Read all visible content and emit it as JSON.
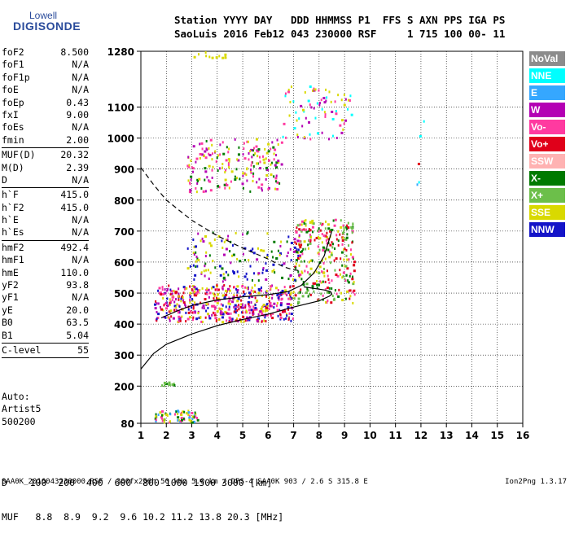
{
  "logo": {
    "top_text": "Lowell",
    "brand_text": "DIGISONDE"
  },
  "header": {
    "line1": "Station YYYY DAY   DDD HHMMSS P1  FFS S AXN PPS IGA PS",
    "line2": "SaoLuis 2016 Feb12 043 230000 RSF     1 715 100 00- 11"
  },
  "params": [
    {
      "name": "foF2",
      "value": "8.500"
    },
    {
      "name": "foF1",
      "value": "N/A"
    },
    {
      "name": "foF1p",
      "value": "N/A"
    },
    {
      "name": "foE",
      "value": "N/A"
    },
    {
      "name": "foEp",
      "value": "0.43"
    },
    {
      "name": "fxI",
      "value": "9.00"
    },
    {
      "name": "foEs",
      "value": "N/A"
    },
    {
      "name": "fmin",
      "value": "2.00"
    },
    {
      "sep": true
    },
    {
      "name": "MUF(D)",
      "value": "20.32"
    },
    {
      "name": "M(D)",
      "value": "2.39"
    },
    {
      "name": "D",
      "value": "N/A"
    },
    {
      "sep": true
    },
    {
      "name": "h`F",
      "value": "415.0"
    },
    {
      "name": "h`F2",
      "value": "415.0"
    },
    {
      "name": "h`E",
      "value": "N/A"
    },
    {
      "name": "h`Es",
      "value": "N/A"
    },
    {
      "sep": true
    },
    {
      "name": "hmF2",
      "value": "492.4"
    },
    {
      "name": "hmF1",
      "value": "N/A"
    },
    {
      "name": "hmE",
      "value": "110.0"
    },
    {
      "name": "yF2",
      "value": "93.8"
    },
    {
      "name": "yF1",
      "value": "N/A"
    },
    {
      "name": "yE",
      "value": "20.0"
    },
    {
      "name": "B0",
      "value": "63.5"
    },
    {
      "name": "B1",
      "value": "5.04"
    },
    {
      "sep": true
    },
    {
      "name": "C-level",
      "value": "55"
    },
    {
      "sep": true
    }
  ],
  "auto": {
    "line1": "Auto:",
    "line2": "Artist5",
    "line3": "500200"
  },
  "legend": [
    {
      "label": "NoVal",
      "color": "#8c8c8c"
    },
    {
      "label": "NNE",
      "color": "#00ffff"
    },
    {
      "label": "E",
      "color": "#35a7ff"
    },
    {
      "label": "W",
      "color": "#b400b4"
    },
    {
      "label": "Vo-",
      "color": "#ff3aa0"
    },
    {
      "label": "Vo+",
      "color": "#e0001a"
    },
    {
      "label": "SSW",
      "color": "#ffb2b2"
    },
    {
      "label": "X-",
      "color": "#007a00"
    },
    {
      "label": "X+",
      "color": "#6cbf4a"
    },
    {
      "label": "SSE",
      "color": "#d9d900"
    },
    {
      "label": "NNW",
      "color": "#1414c8"
    }
  ],
  "footer": {
    "line1": "D    100  200  400  600  800 1000 1500 3000 [km]",
    "line2": "MUF   8.8  8.9  9.2  9.6 10.2 11.2 13.8 20.3 [MHz]"
  },
  "bottom": {
    "info": "SAA0K_2016043230000.RSF / 300fx256h 50 kHz 5.0 km / DPS-4 SAA0K 903 / 2.6 S 315.8 E",
    "version": "Ion2Png 1.3.17"
  },
  "chart_data": {
    "type": "scatter",
    "xlim": [
      1,
      16
    ],
    "ylim": [
      80,
      1280
    ],
    "xticks": [
      "1",
      "2",
      "3",
      "4",
      "5",
      "6",
      "7",
      "8",
      "9",
      "10",
      "11",
      "12",
      "13",
      "14",
      "15",
      "16"
    ],
    "yticks": [
      {
        "value": 80,
        "label": "80"
      },
      {
        "value": 200,
        "label": "200"
      },
      {
        "value": 300,
        "label": "300"
      },
      {
        "value": 400,
        "label": "400"
      },
      {
        "value": 500,
        "label": "500"
      },
      {
        "value": 600,
        "label": "600"
      },
      {
        "value": 700,
        "label": "700"
      },
      {
        "value": 800,
        "label": "800"
      },
      {
        "value": 900,
        "label": "900"
      },
      {
        "value": 1000,
        "label": "1000"
      },
      {
        "value": 1100,
        "label": "1100"
      },
      {
        "value": 1280,
        "label": "1280"
      }
    ],
    "grid": true,
    "profile_curve": {
      "style": "solid",
      "points": [
        [
          1.0,
          255
        ],
        [
          1.5,
          305
        ],
        [
          2.0,
          335
        ],
        [
          3.0,
          368
        ],
        [
          4.0,
          395
        ],
        [
          5.0,
          415
        ],
        [
          6.0,
          432
        ],
        [
          7.0,
          455
        ],
        [
          8.0,
          475
        ],
        [
          8.4,
          490
        ],
        [
          8.5,
          497
        ],
        [
          8.45,
          505
        ],
        [
          8.2,
          510
        ],
        [
          7.8,
          515
        ],
        [
          7.4,
          520
        ]
      ]
    },
    "trace_curve": {
      "style": "solid",
      "points": [
        [
          1.8,
          420
        ],
        [
          2.5,
          445
        ],
        [
          3.0,
          460
        ],
        [
          4.0,
          478
        ],
        [
          5.0,
          488
        ],
        [
          6.0,
          495
        ],
        [
          6.8,
          505
        ],
        [
          7.3,
          525
        ],
        [
          7.8,
          565
        ],
        [
          8.2,
          620
        ],
        [
          8.5,
          700
        ]
      ]
    },
    "dashed_curve": {
      "style": "dashed",
      "points": [
        [
          1.0,
          905
        ],
        [
          1.5,
          850
        ],
        [
          2.0,
          800
        ],
        [
          3.0,
          735
        ],
        [
          4.0,
          685
        ],
        [
          5.0,
          645
        ],
        [
          6.0,
          610
        ],
        [
          6.6,
          585
        ],
        [
          7.0,
          575
        ],
        [
          7.3,
          572
        ]
      ]
    },
    "clusters": [
      {
        "x": [
          1.5,
          7.0
        ],
        "y": [
          410,
          530
        ],
        "colors": [
          "#ff3aa0",
          "#b400b4",
          "#1414c8",
          "#d9d900",
          "#e0001a"
        ],
        "count": 520
      },
      {
        "x": [
          7.0,
          9.4
        ],
        "y": [
          470,
          740
        ],
        "colors": [
          "#ff3aa0",
          "#007a00",
          "#d9d900",
          "#6cbf4a",
          "#e0001a"
        ],
        "count": 300
      },
      {
        "x": [
          2.8,
          7.3
        ],
        "y": [
          540,
          700
        ],
        "colors": [
          "#d9d900",
          "#b400b4",
          "#1414c8",
          "#007a00"
        ],
        "count": 150
      },
      {
        "x": [
          2.8,
          6.5
        ],
        "y": [
          830,
          1000
        ],
        "colors": [
          "#d9d900",
          "#b400b4",
          "#007a00",
          "#ff3aa0"
        ],
        "count": 200
      },
      {
        "x": [
          6.5,
          9.3
        ],
        "y": [
          1000,
          1170
        ],
        "colors": [
          "#d9d900",
          "#b400b4",
          "#00ffff",
          "#ff3aa0"
        ],
        "count": 80
      },
      {
        "x": [
          1.5,
          3.3
        ],
        "y": [
          85,
          125
        ],
        "colors": [
          "#35a7ff",
          "#d9d900",
          "#ff3aa0",
          "#007a00"
        ],
        "count": 70
      },
      {
        "x": [
          1.8,
          2.3
        ],
        "y": [
          205,
          215
        ],
        "colors": [
          "#6cbf4a",
          "#007a00"
        ],
        "count": 12
      },
      {
        "x": [
          3.0,
          4.5
        ],
        "y": [
          1260,
          1280
        ],
        "colors": [
          "#d9d900"
        ],
        "count": 12
      },
      {
        "x": [
          11.6,
          12.1
        ],
        "y": [
          750,
          1140
        ],
        "colors": [
          "#00ffff",
          "#35a7ff",
          "#e0001a"
        ],
        "count": 5
      }
    ]
  }
}
